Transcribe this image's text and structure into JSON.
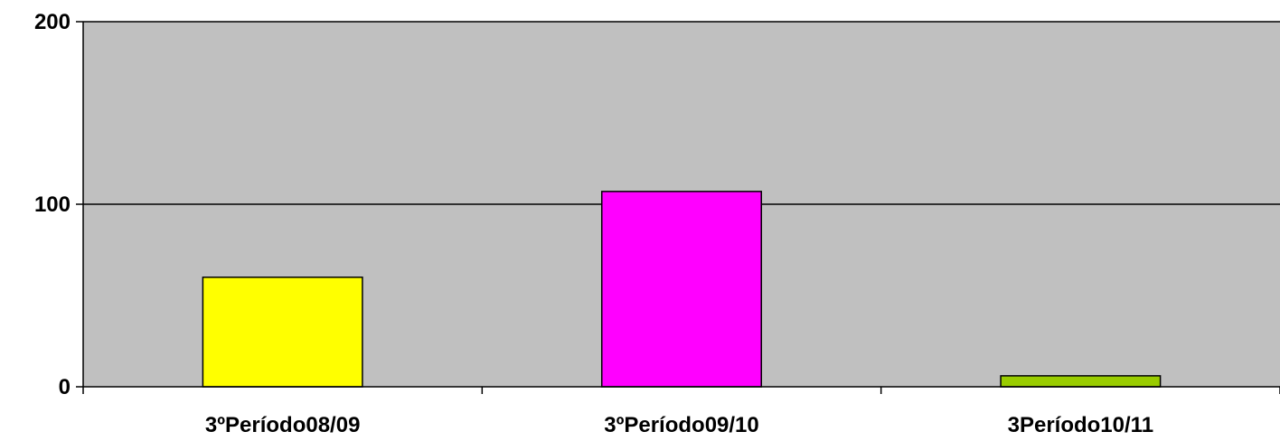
{
  "chart_data": {
    "type": "bar",
    "categories": [
      "3ºPeríodo08/09",
      "3ºPeríodo09/10",
      "3Período10/11"
    ],
    "values": [
      60,
      107,
      6
    ],
    "ylim": [
      0,
      200
    ],
    "yticks": [
      "0",
      "100",
      "200"
    ],
    "grid": true,
    "legend": "none",
    "colors": {
      "plot_background": "#C0C0C0",
      "bars": [
        "#FFFF00",
        "#FF00FF",
        "#99CC00"
      ],
      "bar_outline": "#000000",
      "gridline": "#000000"
    }
  }
}
